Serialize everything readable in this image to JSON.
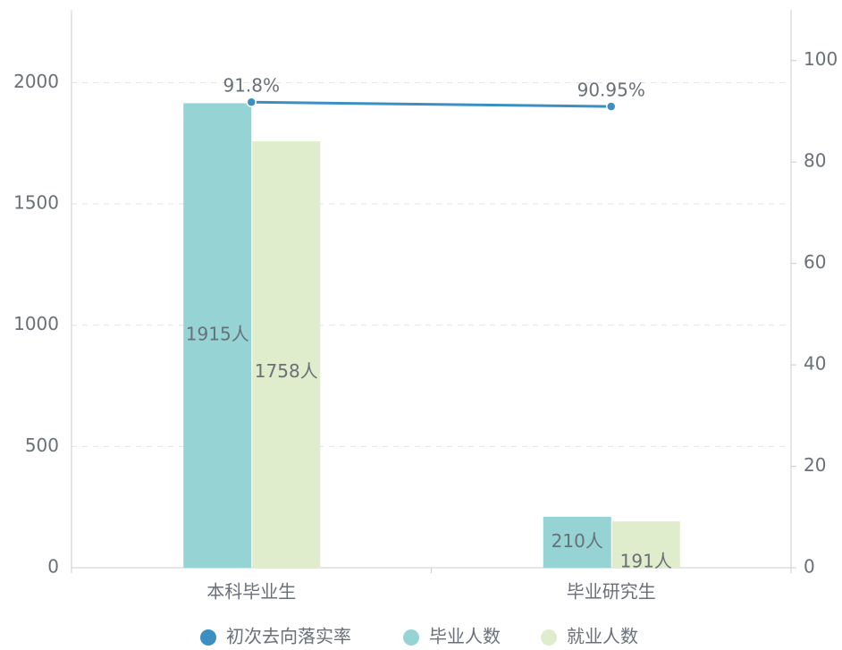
{
  "chart_data": {
    "type": "bar",
    "categories": [
      "本科毕业生",
      "毕业研究生"
    ],
    "series": [
      {
        "name": "初次去向落实率",
        "type": "line",
        "axis": "y2",
        "color": "#3b8fc2",
        "values": [
          91.8,
          90.95
        ],
        "value_labels": [
          "91.8%",
          "90.95%"
        ]
      },
      {
        "name": "毕业人数",
        "type": "bar",
        "color": "#96d3d4",
        "values": [
          1915,
          210
        ],
        "value_labels": [
          "1915人",
          "210人"
        ]
      },
      {
        "name": "就业人数",
        "type": "bar",
        "color": "#dfedcc",
        "values": [
          1758,
          191
        ],
        "value_labels": [
          "1758人",
          "191人"
        ]
      }
    ],
    "ylim": [
      0,
      2300
    ],
    "yticks": [
      0,
      500,
      1000,
      1500,
      2000
    ],
    "y2lim": [
      0,
      110
    ],
    "y2ticks": [
      0,
      20,
      40,
      60,
      80,
      100
    ],
    "grid": true,
    "legend": "bottom"
  }
}
